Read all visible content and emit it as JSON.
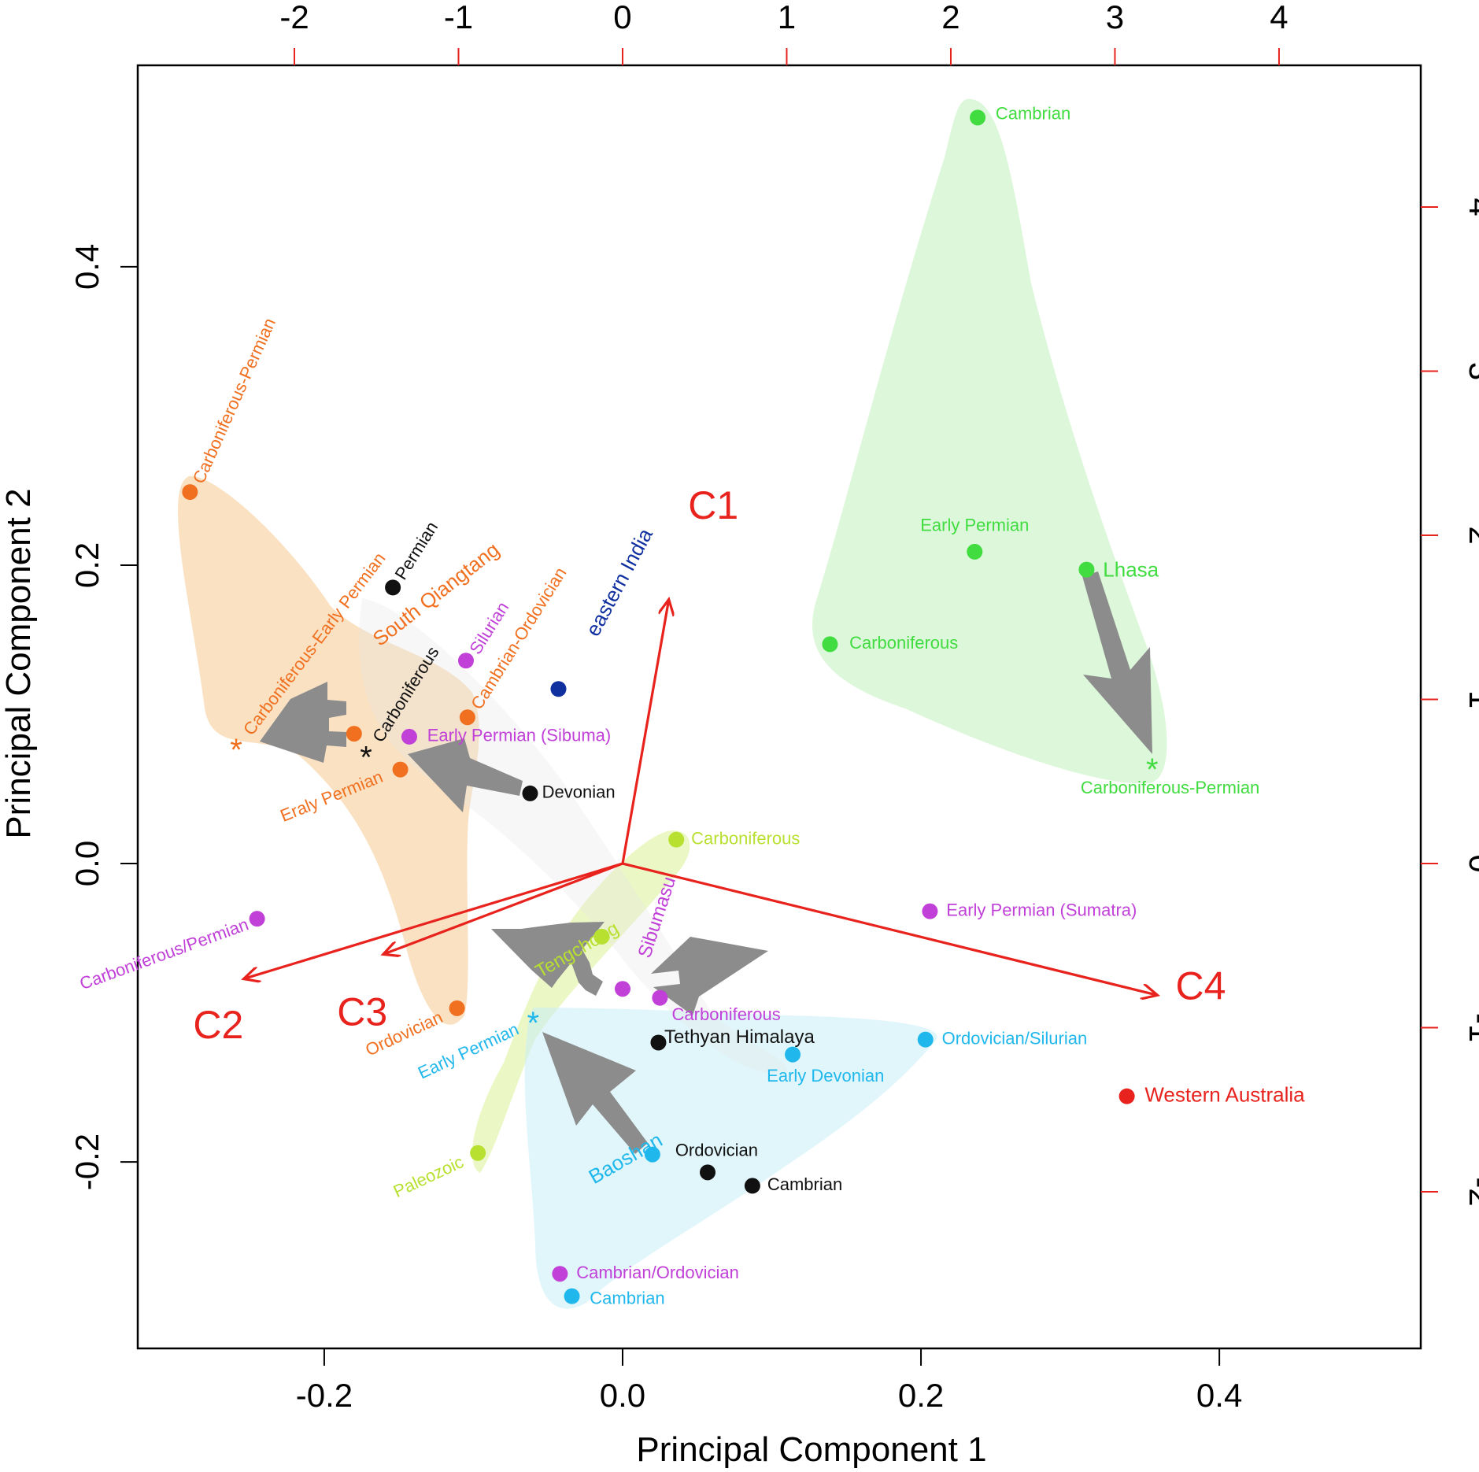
{
  "chart_data": {
    "type": "scatter",
    "subtype": "PCA biplot",
    "title": "",
    "xlabel": "Principal Component 1",
    "ylabel": "Principal Component 2",
    "xlim": [
      -0.325,
      0.535
    ],
    "ylim": [
      -0.325,
      0.535
    ],
    "xticks": [
      "-0.2",
      "0.0",
      "0.2",
      "0.4"
    ],
    "yticks": [
      "-0.2",
      "0.0",
      "0.2",
      "0.4"
    ],
    "xtick_values": [
      -0.2,
      0.0,
      0.2,
      0.4
    ],
    "ytick_values": [
      -0.2,
      0.0,
      0.2,
      0.4
    ],
    "secondary_ticks": [
      "-2",
      "-1",
      "0",
      "1",
      "2",
      "3",
      "4"
    ],
    "secondary_tick_values": [
      -2,
      -1,
      0,
      1,
      2,
      3,
      4
    ],
    "loading_scale": 0.11,
    "grid": false,
    "colors": {
      "south_qiangtang": "#f07020",
      "carboniferous_black": "#111111",
      "sibumasu": "#c040d8",
      "eastern_india": "#1030a0",
      "lhasa": "#40dc40",
      "tengchong": "#b8e030",
      "baoshan": "#20b8ec",
      "western_australia": "#e8221c",
      "loading": "#e8221c",
      "movement_arrow": "#8c8c8c"
    },
    "regions": [
      {
        "name": "South Qiangtang",
        "color": "#f07020",
        "x": -0.165,
        "y": 0.148,
        "rotate": -38,
        "size": 26
      },
      {
        "name": "eastern India",
        "color": "#1030a0",
        "x": -0.02,
        "y": 0.153,
        "rotate": -62,
        "size": 26
      },
      {
        "name": "Lhasa",
        "color": "#40dc40",
        "x": 0.322,
        "y": 0.196,
        "rotate": 0,
        "size": 26
      },
      {
        "name": "Sibumasu",
        "color": "#c040d8",
        "x": 0.015,
        "y": -0.063,
        "rotate": -72,
        "size": 24
      },
      {
        "name": "Tengchong",
        "color": "#b8e030",
        "x": -0.057,
        "y": -0.074,
        "rotate": -30,
        "size": 24
      },
      {
        "name": "Baoshan",
        "color": "#20b8ec",
        "x": -0.021,
        "y": -0.212,
        "rotate": -30,
        "size": 26
      },
      {
        "name": "Tethyan Himalaya",
        "color": "#111111",
        "x": 0.028,
        "y": -0.117,
        "rotate": 0,
        "size": 24
      }
    ],
    "points": [
      {
        "label": "Carboniferous-Permian",
        "x": -0.29,
        "y": 0.249,
        "color": "#f07020",
        "marker": "dot",
        "lx": 0.006,
        "ly": 0.006,
        "rotate": -66
      },
      {
        "label": "Carboniferous-Early Permian",
        "x": -0.259,
        "y": 0.078,
        "color": "#f07020",
        "marker": "star",
        "lx": 0.008,
        "ly": 0.009,
        "rotate": -53
      },
      {
        "label": "",
        "x": -0.18,
        "y": 0.087,
        "color": "#f07020",
        "marker": "dot"
      },
      {
        "label": "Eraly Permian",
        "x": -0.149,
        "y": 0.063,
        "color": "#f07020",
        "marker": "dot",
        "lx": -0.012,
        "ly": -0.005,
        "rotate": -22,
        "anchor": "end"
      },
      {
        "label": "Cambrian-Ordovician",
        "x": -0.104,
        "y": 0.098,
        "color": "#f07020",
        "marker": "dot",
        "lx": 0.006,
        "ly": 0.006,
        "rotate": -58
      },
      {
        "label": "Ordovician",
        "x": -0.111,
        "y": -0.097,
        "color": "#f07020",
        "marker": "dot",
        "lx": -0.01,
        "ly": -0.006,
        "rotate": -25,
        "anchor": "end"
      },
      {
        "label": "Permian",
        "x": -0.154,
        "y": 0.185,
        "color": "#111111",
        "marker": "dot",
        "lx": 0.005,
        "ly": 0.006,
        "rotate": -58
      },
      {
        "label": "Carboniferous",
        "x": -0.172,
        "y": 0.073,
        "color": "#111111",
        "marker": "star",
        "lx": 0.008,
        "ly": 0.009,
        "rotate": -58
      },
      {
        "label": "Devonian",
        "x": -0.062,
        "y": 0.047,
        "color": "#111111",
        "marker": "dot",
        "lx": 0.008,
        "ly": 0,
        "rotate": 0
      },
      {
        "label": "Silurian",
        "x": -0.105,
        "y": 0.136,
        "color": "#c040d8",
        "marker": "dot",
        "lx": 0.006,
        "ly": 0.005,
        "rotate": -58
      },
      {
        "label": "Early Permian (Sibuma)",
        "x": -0.143,
        "y": 0.085,
        "color": "#c040d8",
        "marker": "dot",
        "lx": 0.012,
        "ly": 0,
        "rotate": 0
      },
      {
        "label": "",
        "x": -0.043,
        "y": 0.117,
        "color": "#1030a0",
        "marker": "dot"
      },
      {
        "label": "Carboniferous/Permian",
        "x": -0.245,
        "y": -0.037,
        "color": "#c040d8",
        "marker": "dot",
        "lx": -0.006,
        "ly": -0.004,
        "rotate": -20,
        "anchor": "end",
        "placement": "topleft"
      },
      {
        "label": "Early Permian (Sumatra)",
        "x": 0.206,
        "y": -0.032,
        "color": "#c040d8",
        "marker": "dot",
        "lx": 0.011,
        "ly": 0,
        "rotate": 0
      },
      {
        "label": "",
        "x": -0.0,
        "y": -0.084,
        "color": "#c040d8",
        "marker": "dot"
      },
      {
        "label": "Carboniferous",
        "x": 0.025,
        "y": -0.09,
        "color": "#c040d8",
        "marker": "dot",
        "lx": 0.008,
        "ly": -0.012,
        "rotate": 0
      },
      {
        "label": "Cambrian/Ordovician",
        "x": -0.042,
        "y": -0.275,
        "color": "#c040d8",
        "marker": "dot",
        "lx": 0.011,
        "ly": 0,
        "rotate": 0
      },
      {
        "label": "Cambrian",
        "x": 0.238,
        "y": 0.5,
        "color": "#40dc40",
        "marker": "dot",
        "lx": 0.012,
        "ly": 0.002,
        "rotate": 0
      },
      {
        "label": "Early Permian",
        "x": 0.236,
        "y": 0.209,
        "color": "#40dc40",
        "marker": "dot",
        "lx": 0.0,
        "ly": 0.017,
        "rotate": 0,
        "anchor": "middle"
      },
      {
        "label": "",
        "x": 0.311,
        "y": 0.197,
        "color": "#40dc40",
        "marker": "dot"
      },
      {
        "label": "Carboniferous",
        "x": 0.139,
        "y": 0.147,
        "color": "#40dc40",
        "marker": "dot",
        "lx": 0.013,
        "ly": 0,
        "rotate": 0
      },
      {
        "label": "Carboniferous-Permian",
        "x": 0.355,
        "y": 0.065,
        "color": "#40dc40",
        "marker": "star",
        "lx": 0.012,
        "ly": -0.015,
        "rotate": 0,
        "anchor": "middle"
      },
      {
        "label": "Carboniferous",
        "x": 0.036,
        "y": 0.016,
        "color": "#b8e030",
        "marker": "dot",
        "lx": 0.01,
        "ly": 0,
        "rotate": 0
      },
      {
        "label": "",
        "x": -0.014,
        "y": -0.049,
        "color": "#b8e030",
        "marker": "dot"
      },
      {
        "label": "Paleozoic",
        "x": -0.097,
        "y": -0.194,
        "color": "#b8e030",
        "marker": "dot",
        "lx": -0.01,
        "ly": -0.006,
        "rotate": -25,
        "anchor": "end"
      },
      {
        "label": "Early Permian",
        "x": -0.06,
        "y": -0.105,
        "color": "#20b8ec",
        "marker": "star",
        "lx": -0.01,
        "ly": -0.006,
        "rotate": -25,
        "anchor": "end"
      },
      {
        "label": "Ordovician/Silurian",
        "x": 0.203,
        "y": -0.118,
        "color": "#20b8ec",
        "marker": "dot",
        "lx": 0.011,
        "ly": 0,
        "rotate": 0
      },
      {
        "label": "Early Devonian",
        "x": 0.114,
        "y": -0.128,
        "color": "#20b8ec",
        "marker": "dot",
        "lx": 0.022,
        "ly": -0.015,
        "rotate": 0,
        "anchor": "middle"
      },
      {
        "label": "",
        "x": 0.02,
        "y": -0.195,
        "color": "#20b8ec",
        "marker": "dot"
      },
      {
        "label": "Cambrian",
        "x": -0.034,
        "y": -0.29,
        "color": "#20b8ec",
        "marker": "dot",
        "lx": 0.012,
        "ly": -0.002,
        "rotate": 0
      },
      {
        "label": "Ordovician",
        "x": 0.057,
        "y": -0.207,
        "color": "#111111",
        "marker": "dot",
        "lx": 0.006,
        "ly": 0.014,
        "rotate": 0,
        "anchor": "middle"
      },
      {
        "label": "Cambrian",
        "x": 0.087,
        "y": -0.216,
        "color": "#111111",
        "marker": "dot",
        "lx": 0.01,
        "ly": 0,
        "rotate": 0
      },
      {
        "label": "",
        "x": 0.024,
        "y": -0.12,
        "color": "#111111",
        "marker": "dot"
      },
      {
        "label": "Western Australia",
        "x": 0.338,
        "y": -0.156,
        "color": "#e8221c",
        "marker": "dot",
        "lx": 0.012,
        "ly": 0,
        "rotate": 0,
        "size": 26
      }
    ],
    "loadings": [
      {
        "label": "C1",
        "x": 0.28,
        "y": 1.6,
        "lx": 0.03,
        "ly": 0.055
      },
      {
        "label": "C2",
        "x": -2.3,
        "y": -0.7,
        "lx": -0.018,
        "ly": -0.04
      },
      {
        "label": "C3",
        "x": -1.45,
        "y": -0.55,
        "lx": -0.015,
        "ly": -0.048
      },
      {
        "label": "C4",
        "x": 3.25,
        "y": -0.8,
        "lx": 0.03,
        "ly": -0.003
      }
    ]
  }
}
